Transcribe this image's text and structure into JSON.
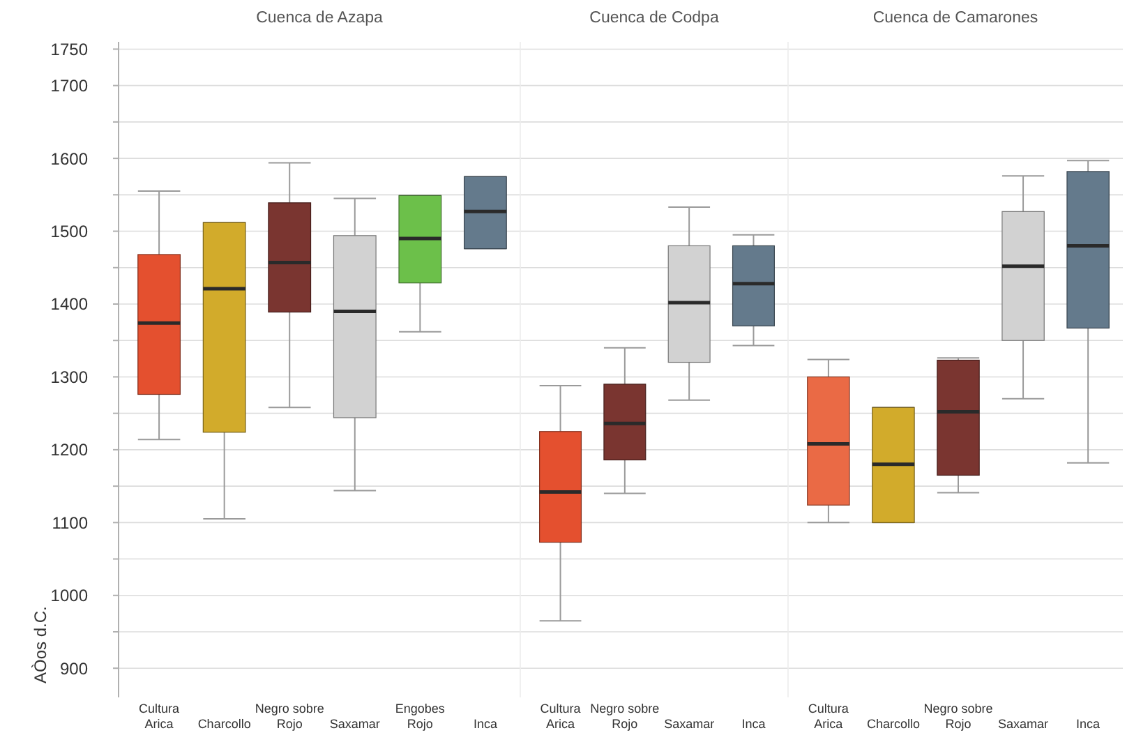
{
  "chart_data": [
    {
      "type": "box",
      "title": "Cuenca de Azapa",
      "ylabel": "AÒos d.C.",
      "categories": [
        "Cultura Arica",
        "Charcollo",
        "Negro sobre Rojo",
        "Saxamar",
        "Engobes Rojo",
        "Inca"
      ],
      "colors": [
        "#e4502f",
        "#d2ab2b",
        "#7a3530",
        "#d2d2d2",
        "#6cc04a",
        "#647a8c"
      ],
      "boxes": [
        {
          "low": 1214,
          "q1": 1276,
          "median": 1374,
          "q3": 1468,
          "high": 1555
        },
        {
          "low": 1105,
          "q1": 1224,
          "median": 1421,
          "q3": 1512,
          "high": 1512
        },
        {
          "low": 1258,
          "q1": 1389,
          "median": 1457,
          "q3": 1539,
          "high": 1594
        },
        {
          "low": 1144,
          "q1": 1244,
          "median": 1390,
          "q3": 1494,
          "high": 1545
        },
        {
          "low": 1362,
          "q1": 1429,
          "median": 1490,
          "q3": 1549,
          "high": 1549
        },
        {
          "low": 1476,
          "q1": 1476,
          "median": 1527,
          "q3": 1575,
          "high": 1575
        }
      ],
      "ylim": [
        860,
        1760
      ],
      "yticks": [
        900,
        {
          "value": 950,
          "label": null
        },
        1000,
        {
          "value": 1050,
          "label": null
        },
        1100,
        {
          "value": 1150,
          "label": null
        },
        1200,
        {
          "value": 1250,
          "label": null
        },
        1300,
        {
          "value": 1350,
          "label": null
        },
        1400,
        {
          "value": 1450,
          "label": null
        },
        1500,
        {
          "value": 1550,
          "label": null
        },
        1600,
        {
          "value": 1650,
          "label": null
        },
        1700,
        1750
      ],
      "grid": "y"
    },
    {
      "type": "box",
      "title": "Cuenca de Codpa",
      "categories": [
        "Cultura Arica",
        "Negro sobre Rojo",
        "Saxamar",
        "Inca"
      ],
      "colors": [
        "#e4502f",
        "#7a3530",
        "#d2d2d2",
        "#647a8c"
      ],
      "boxes": [
        {
          "low": 965,
          "q1": 1073,
          "median": 1142,
          "q3": 1225,
          "high": 1288
        },
        {
          "low": 1140,
          "q1": 1186,
          "median": 1236,
          "q3": 1290,
          "high": 1340
        },
        {
          "low": 1268,
          "q1": 1320,
          "median": 1402,
          "q3": 1480,
          "high": 1533
        },
        {
          "low": 1343,
          "q1": 1370,
          "median": 1428,
          "q3": 1480,
          "high": 1495
        }
      ],
      "ylim": [
        860,
        1760
      ],
      "yticks": [
        900,
        {
          "value": 950,
          "label": null
        },
        1000,
        {
          "value": 1050,
          "label": null
        },
        1100,
        {
          "value": 1150,
          "label": null
        },
        1200,
        {
          "value": 1250,
          "label": null
        },
        1300,
        {
          "value": 1350,
          "label": null
        },
        1400,
        {
          "value": 1450,
          "label": null
        },
        1500,
        {
          "value": 1550,
          "label": null
        },
        1600,
        {
          "value": 1650,
          "label": null
        },
        1700,
        1750
      ],
      "grid": "y",
      "tick_labels": "x"
    },
    {
      "type": "box",
      "title": "Cuenca de Camarones",
      "categories": [
        "Cultura Arica",
        "Charcollo",
        "Negro sobre Rojo",
        "Saxamar",
        "Inca"
      ],
      "colors": [
        "#ea6a45",
        "#d2ab2b",
        "#7a3530",
        "#d2d2d2",
        "#647a8c"
      ],
      "boxes": [
        {
          "low": 1100,
          "q1": 1124,
          "median": 1208,
          "q3": 1300,
          "high": 1324
        },
        {
          "low": 1100,
          "q1": 1100,
          "median": 1180,
          "q3": 1258,
          "high": 1258
        },
        {
          "low": 1141,
          "q1": 1165,
          "median": 1252,
          "q3": 1323,
          "high": 1326
        },
        {
          "low": 1270,
          "q1": 1350,
          "median": 1452,
          "q3": 1527,
          "high": 1576
        },
        {
          "low": 1182,
          "q1": 1367,
          "median": 1480,
          "q3": 1582,
          "high": 1597
        }
      ],
      "ylim": [
        860,
        1760
      ],
      "yticks": [
        900,
        {
          "value": 950,
          "label": null
        },
        1000,
        {
          "value": 1050,
          "label": null
        },
        1100,
        {
          "value": 1150,
          "label": null
        },
        1200,
        {
          "value": 1250,
          "label": null
        },
        1300,
        {
          "value": 1350,
          "label": null
        },
        1400,
        {
          "value": 1450,
          "label": null
        },
        1500,
        {
          "value": 1550,
          "label": null
        },
        1600,
        {
          "value": 1650,
          "label": null
        },
        1700,
        1750
      ],
      "grid": "y",
      "tick_labels": "x"
    }
  ]
}
